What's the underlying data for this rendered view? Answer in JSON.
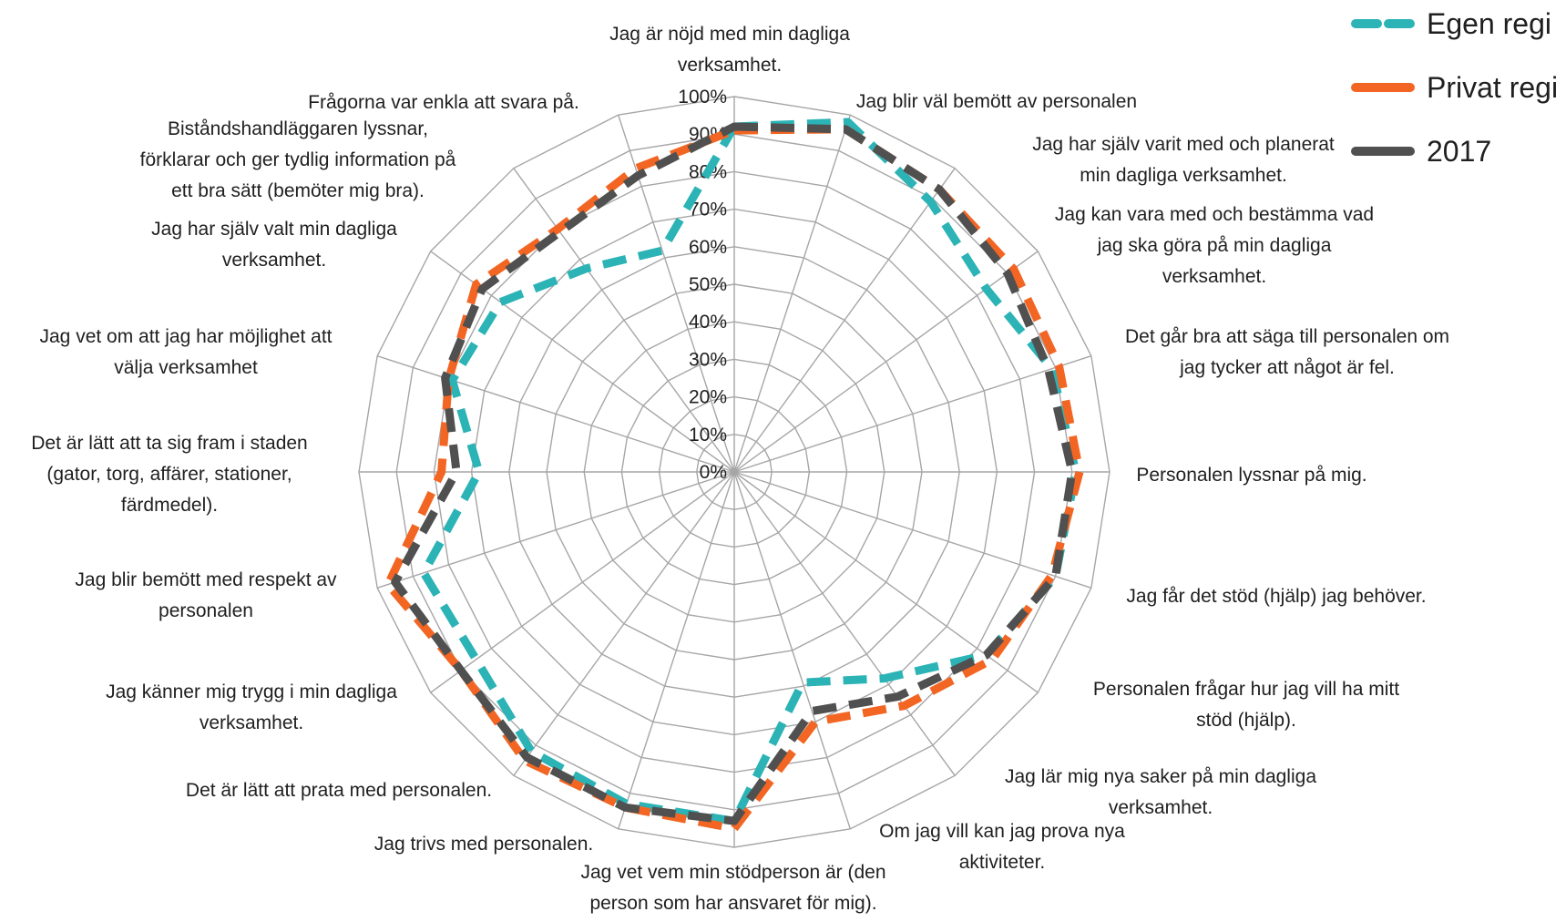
{
  "chart_data": {
    "type": "radar",
    "title": "",
    "r_axis": {
      "min": 0,
      "max": 100,
      "ticks": [
        "0%",
        "10%",
        "20%",
        "30%",
        "40%",
        "50%",
        "60%",
        "70%",
        "80%",
        "90%",
        "100%"
      ]
    },
    "grid": true,
    "legend_position": "top-right",
    "categories": [
      "Jag är nöjd med min dagliga verksamhet.",
      "Jag blir väl bemött av personalen",
      "Jag har själv varit med och planerat min dagliga verksamhet.",
      "Jag kan vara med och bestämma vad jag ska göra på min dagliga verksamhet.",
      "Det går bra att säga till personalen om jag tycker att något är fel.",
      "Personalen lyssnar på mig.",
      "Jag får det stöd (hjälp) jag behöver.",
      "Personalen frågar hur jag vill ha mitt stöd (hjälp).",
      "Jag lär mig nya saker på min dagliga verksamhet.",
      "Om jag vill kan jag prova nya aktiviteter.",
      "Jag vet vem min stödperson är (den person som har ansvaret för mig).",
      "Jag trivs med personalen.",
      "Det är lätt att prata med personalen.",
      "Jag känner mig trygg i min dagliga verksamhet.",
      "Jag blir bemött med respekt av personalen",
      "Det är lätt att ta sig fram i staden (gator, torg, affärer, stationer, färdmedel).",
      "Jag vet om att jag har möjlighet att välja verksamhet",
      "Jag har själv valt min dagliga verksamhet.",
      "Biståndshandläggaren lyssnar, förklarar och ger tydlig information på ett bra sätt (bemöter mig bra).",
      "Frågorna var enkla att svara på."
    ],
    "series": [
      {
        "name": "Egen regi",
        "color": "#2BB3B6",
        "dash": "dashed",
        "values": [
          92,
          98,
          89,
          83,
          89,
          91,
          90,
          83,
          68,
          59,
          93,
          93,
          92,
          85,
          87,
          68,
          79,
          77,
          67,
          62
        ]
      },
      {
        "name": "Privat regi",
        "color": "#F26522",
        "dash": "dashed",
        "values": [
          91,
          96,
          93,
          92,
          91,
          92,
          89,
          85,
          77,
          70,
          95,
          94,
          95,
          90,
          97,
          78,
          80,
          85,
          80,
          85
        ]
      },
      {
        "name": "2017",
        "color": "#505050",
        "dash": "dashed",
        "values": [
          92,
          96,
          93,
          90,
          88,
          90,
          90,
          83,
          74,
          67,
          93,
          94,
          94,
          90,
          95,
          74,
          81,
          83,
          79,
          83
        ]
      }
    ]
  }
}
